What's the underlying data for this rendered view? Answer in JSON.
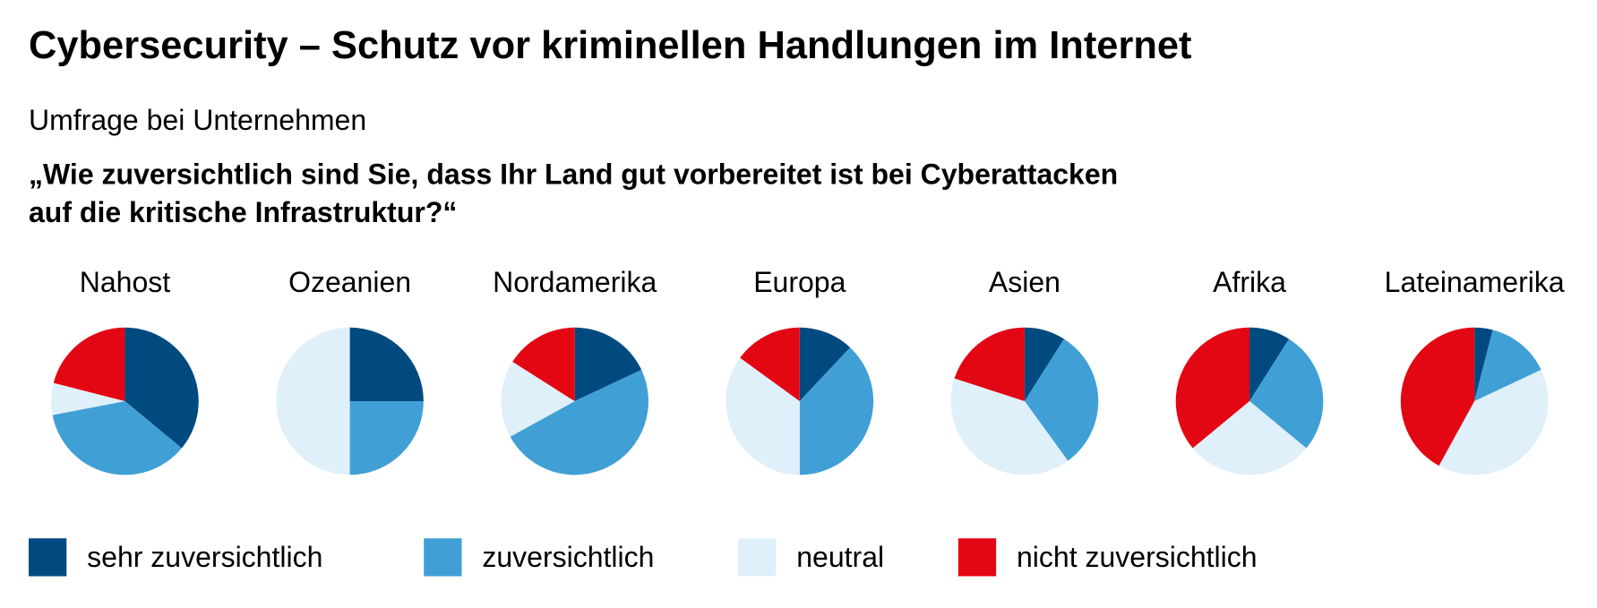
{
  "title": "Cybersecurity – Schutz vor kriminellen Handlungen im Internet",
  "subtitle": "Umfrage bei Unternehmen",
  "question_line1": "„Wie zuversichtlich sind Sie, dass Ihr Land gut vorbereitet ist bei Cyberattacken",
  "question_line2": "auf die kritische Infrastruktur?“",
  "chart_data": {
    "type": "pie",
    "unit": "percent (estimated)",
    "categories": [
      "sehr zuversichtlich",
      "zuversichtlich",
      "neutral",
      "nicht zuversichtlich"
    ],
    "colors": [
      "#004a7f",
      "#40a0d6",
      "#dff0fb",
      "#e30613"
    ],
    "legend_position": "bottom",
    "pies": [
      {
        "region": "Nahost",
        "values": [
          36,
          36,
          7,
          21
        ]
      },
      {
        "region": "Ozeanien",
        "values": [
          25,
          25,
          50,
          0
        ]
      },
      {
        "region": "Nordamerika",
        "values": [
          18,
          49,
          17,
          16
        ]
      },
      {
        "region": "Europa",
        "values": [
          12,
          38,
          35,
          15
        ]
      },
      {
        "region": "Asien",
        "values": [
          9,
          31,
          40,
          20
        ]
      },
      {
        "region": "Afrika",
        "values": [
          9,
          27,
          28,
          36
        ]
      },
      {
        "region": "Lateinamerika",
        "values": [
          4,
          14,
          40,
          42
        ]
      }
    ]
  }
}
